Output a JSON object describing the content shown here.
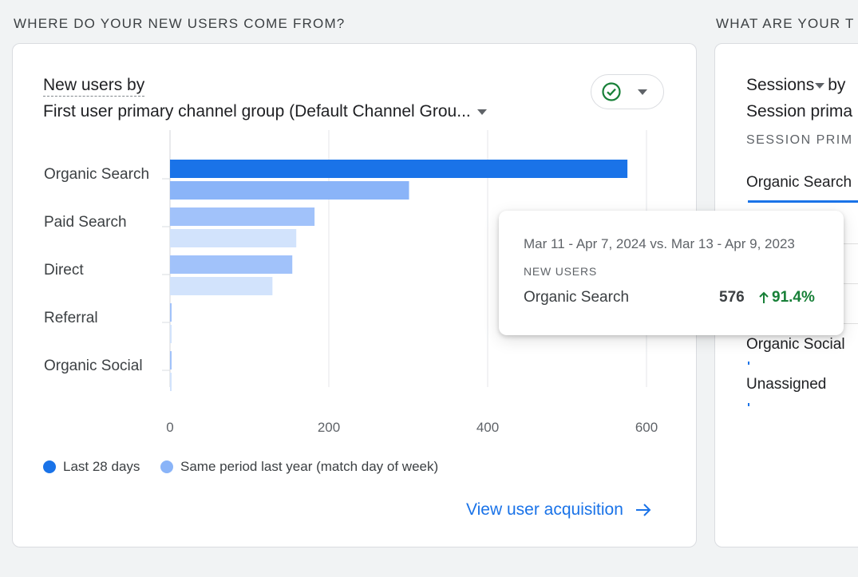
{
  "left_section": {
    "title": "WHERE DO YOUR NEW USERS COME FROM?",
    "card": {
      "title_metric": "New users by",
      "title_dimension": "First user primary channel group (Default Channel Grou...",
      "check_icon": "check-circle-icon",
      "legend": [
        {
          "label": "Last 28 days",
          "color": "#1a73e8"
        },
        {
          "label": "Same period last year (match day of week)",
          "color": "#8ab4f8"
        }
      ],
      "link_label": "View user acquisition"
    }
  },
  "chart_data": {
    "type": "bar",
    "orientation": "horizontal",
    "categories": [
      "Organic Search",
      "Paid Search",
      "Direct",
      "Referral",
      "Organic Social"
    ],
    "series": [
      {
        "name": "Last 28 days",
        "values": [
          576,
          182,
          154,
          2,
          2
        ]
      },
      {
        "name": "Same period last year (match day of week)",
        "values": [
          301,
          159,
          129,
          2,
          2
        ]
      }
    ],
    "xlim": [
      0,
      600
    ],
    "xticks": [
      "0",
      "200",
      "400",
      "600"
    ],
    "grid": true,
    "highlighted_category": "Organic Search"
  },
  "tooltip": {
    "date_range": "Mar 11 - Apr 7, 2024 vs. Mar 13 - Apr 9, 2023",
    "metric": "NEW USERS",
    "row_label": "Organic Search",
    "value": "576",
    "change": "91.4%",
    "change_color": "#188038"
  },
  "right_section": {
    "title": "WHAT ARE YOUR T",
    "card": {
      "title_metric": "Sessions",
      "title_by": "by",
      "title_dimension": "Session prima",
      "column_header": "SESSION PRIM",
      "selected_tab": "Organic Search",
      "rows": [
        "Organic Social",
        "Unassigned"
      ]
    }
  }
}
